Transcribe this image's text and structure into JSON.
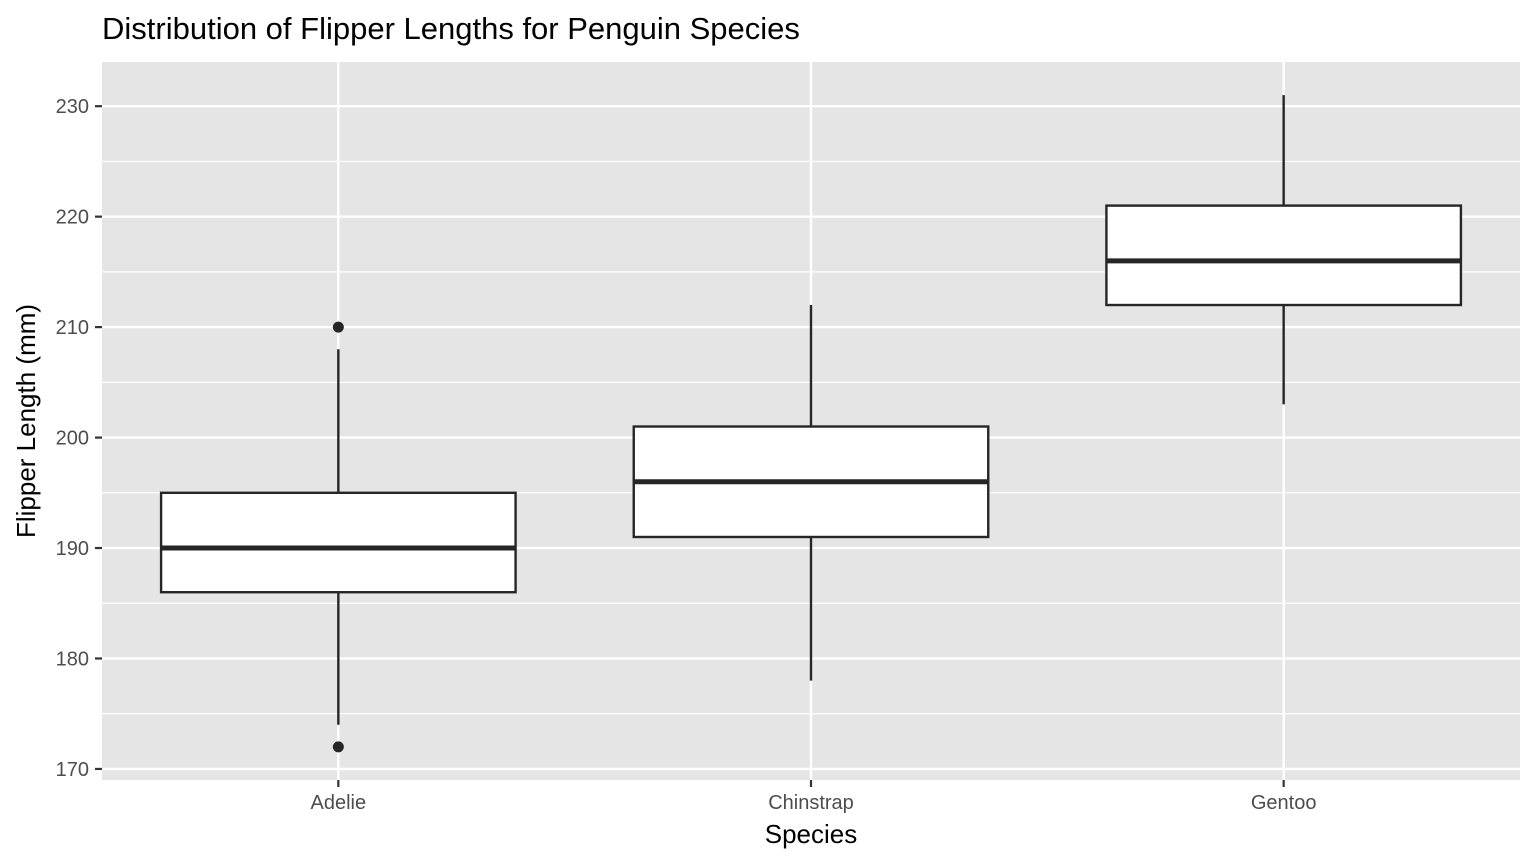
{
  "chart_data": {
    "type": "boxplot",
    "title": "Distribution of Flipper Lengths for Penguin Species",
    "xlabel": "Species",
    "ylabel": "Flipper Length (mm)",
    "categories": [
      "Adelie",
      "Chinstrap",
      "Gentoo"
    ],
    "ylim": [
      169,
      234
    ],
    "yticks": [
      170,
      180,
      190,
      200,
      210,
      220,
      230
    ],
    "grid": true,
    "legend": "none",
    "boxes": [
      {
        "category": "Adelie",
        "whisker_low": 174,
        "q1": 186,
        "median": 190,
        "q3": 195,
        "whisker_high": 208,
        "outliers": [
          172,
          210
        ]
      },
      {
        "category": "Chinstrap",
        "whisker_low": 178,
        "q1": 191,
        "median": 196,
        "q3": 201,
        "whisker_high": 212,
        "outliers": []
      },
      {
        "category": "Gentoo",
        "whisker_low": 203,
        "q1": 212,
        "median": 216,
        "q3": 221,
        "whisker_high": 231,
        "outliers": []
      }
    ],
    "colors": {
      "panel_background": "#e5e5e5",
      "grid_line": "#ffffff",
      "box_fill": "#ffffff",
      "box_stroke": "#262626",
      "tick_label": "#4d4d4d",
      "text": "#000000"
    }
  }
}
